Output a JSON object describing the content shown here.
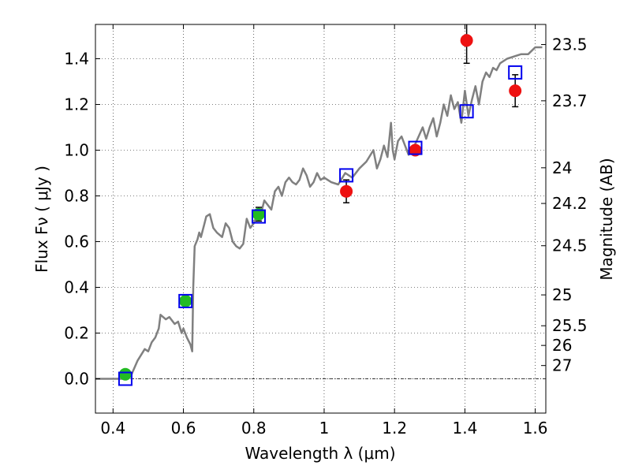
{
  "chart_data": {
    "type": "scatter",
    "xlabel": "Wavelength  λ (μm)",
    "ylabel": "Flux  Fν  ( μJy )",
    "y2label": "Magnitude (AB)",
    "xlim": [
      0.35,
      1.63
    ],
    "ylim": [
      -0.15,
      1.55
    ],
    "grid": true,
    "x_ticks": [
      0.4,
      0.6,
      0.8,
      1.0,
      1.2,
      1.4,
      1.6
    ],
    "x_tick_labels": [
      "0.4",
      "0.6",
      "0.8",
      "1",
      "1.2",
      "1.4",
      "1.6"
    ],
    "y_ticks": [
      0.0,
      0.2,
      0.4,
      0.6,
      0.8,
      1.0,
      1.2,
      1.4
    ],
    "y_tick_labels": [
      "0.0",
      "0.2",
      "0.4",
      "0.6",
      "0.8",
      "1.0",
      "1.2",
      "1.4"
    ],
    "mag_ticks": [
      {
        "label": "23.5",
        "flux": 1.462
      },
      {
        "label": "23.7",
        "flux": 1.216
      },
      {
        "label": "24",
        "flux": 0.923
      },
      {
        "label": "24.2",
        "flux": 0.767
      },
      {
        "label": "24.5",
        "flux": 0.582
      },
      {
        "label": "25",
        "flux": 0.367
      },
      {
        "label": "25.5",
        "flux": 0.232
      },
      {
        "label": "26",
        "flux": 0.146
      },
      {
        "label": "27",
        "flux": 0.058
      }
    ],
    "model_spectrum": {
      "name": "model SED",
      "color": "#808080",
      "x": [
        0.35,
        0.44,
        0.45,
        0.47,
        0.49,
        0.5,
        0.51,
        0.52,
        0.53,
        0.535,
        0.55,
        0.56,
        0.575,
        0.585,
        0.595,
        0.6,
        0.61,
        0.62,
        0.625,
        0.628,
        0.632,
        0.64,
        0.645,
        0.65,
        0.66,
        0.665,
        0.675,
        0.685,
        0.695,
        0.71,
        0.72,
        0.73,
        0.74,
        0.75,
        0.76,
        0.77,
        0.78,
        0.79,
        0.8,
        0.81,
        0.82,
        0.83,
        0.84,
        0.85,
        0.86,
        0.87,
        0.88,
        0.89,
        0.9,
        0.91,
        0.92,
        0.93,
        0.94,
        0.95,
        0.96,
        0.97,
        0.98,
        0.99,
        1.0,
        1.02,
        1.04,
        1.06,
        1.08,
        1.1,
        1.12,
        1.14,
        1.15,
        1.16,
        1.17,
        1.18,
        1.19,
        1.195,
        1.2,
        1.21,
        1.22,
        1.24,
        1.26,
        1.28,
        1.29,
        1.3,
        1.31,
        1.32,
        1.33,
        1.34,
        1.35,
        1.36,
        1.37,
        1.38,
        1.39,
        1.4,
        1.41,
        1.42,
        1.43,
        1.44,
        1.45,
        1.46,
        1.47,
        1.48,
        1.49,
        1.5,
        1.52,
        1.54,
        1.56,
        1.58,
        1.6,
        1.62
      ],
      "y": [
        0.0,
        0.0,
        0.01,
        0.08,
        0.13,
        0.12,
        0.16,
        0.18,
        0.22,
        0.28,
        0.26,
        0.27,
        0.24,
        0.25,
        0.2,
        0.22,
        0.18,
        0.15,
        0.12,
        0.4,
        0.58,
        0.61,
        0.64,
        0.62,
        0.68,
        0.71,
        0.72,
        0.66,
        0.64,
        0.62,
        0.68,
        0.66,
        0.6,
        0.58,
        0.57,
        0.59,
        0.7,
        0.66,
        0.68,
        0.72,
        0.72,
        0.78,
        0.76,
        0.74,
        0.82,
        0.84,
        0.8,
        0.86,
        0.88,
        0.86,
        0.85,
        0.87,
        0.92,
        0.89,
        0.84,
        0.86,
        0.9,
        0.87,
        0.88,
        0.86,
        0.85,
        0.9,
        0.88,
        0.92,
        0.95,
        1.0,
        0.92,
        0.96,
        1.02,
        0.97,
        1.12,
        1.0,
        0.96,
        1.04,
        1.06,
        0.98,
        1.03,
        1.1,
        1.05,
        1.1,
        1.14,
        1.06,
        1.12,
        1.2,
        1.15,
        1.24,
        1.18,
        1.21,
        1.12,
        1.26,
        1.15,
        1.22,
        1.28,
        1.2,
        1.3,
        1.34,
        1.32,
        1.36,
        1.35,
        1.38,
        1.4,
        1.41,
        1.42,
        1.42,
        1.45,
        1.45
      ]
    },
    "series": [
      {
        "name": "photometry green",
        "color": "#22bb22",
        "marker": "circle",
        "x": [
          0.435,
          0.606,
          0.814
        ],
        "y": [
          0.02,
          0.34,
          0.72
        ],
        "yerr": [
          0.02,
          0.02,
          0.03
        ]
      },
      {
        "name": "photometry red",
        "color": "#ee1111",
        "marker": "circle",
        "x": [
          1.063,
          1.259,
          1.405,
          1.543
        ],
        "y": [
          0.82,
          1.0,
          1.48,
          1.26
        ],
        "yerr": [
          0.05,
          0.0,
          0.1,
          0.07
        ]
      },
      {
        "name": "synthetic photometry",
        "color": "#0000ee",
        "marker": "open-square",
        "x": [
          0.435,
          0.606,
          0.814,
          1.063,
          1.259,
          1.405,
          1.543
        ],
        "y": [
          0.0,
          0.34,
          0.71,
          0.89,
          1.01,
          1.17,
          1.34
        ]
      }
    ]
  }
}
